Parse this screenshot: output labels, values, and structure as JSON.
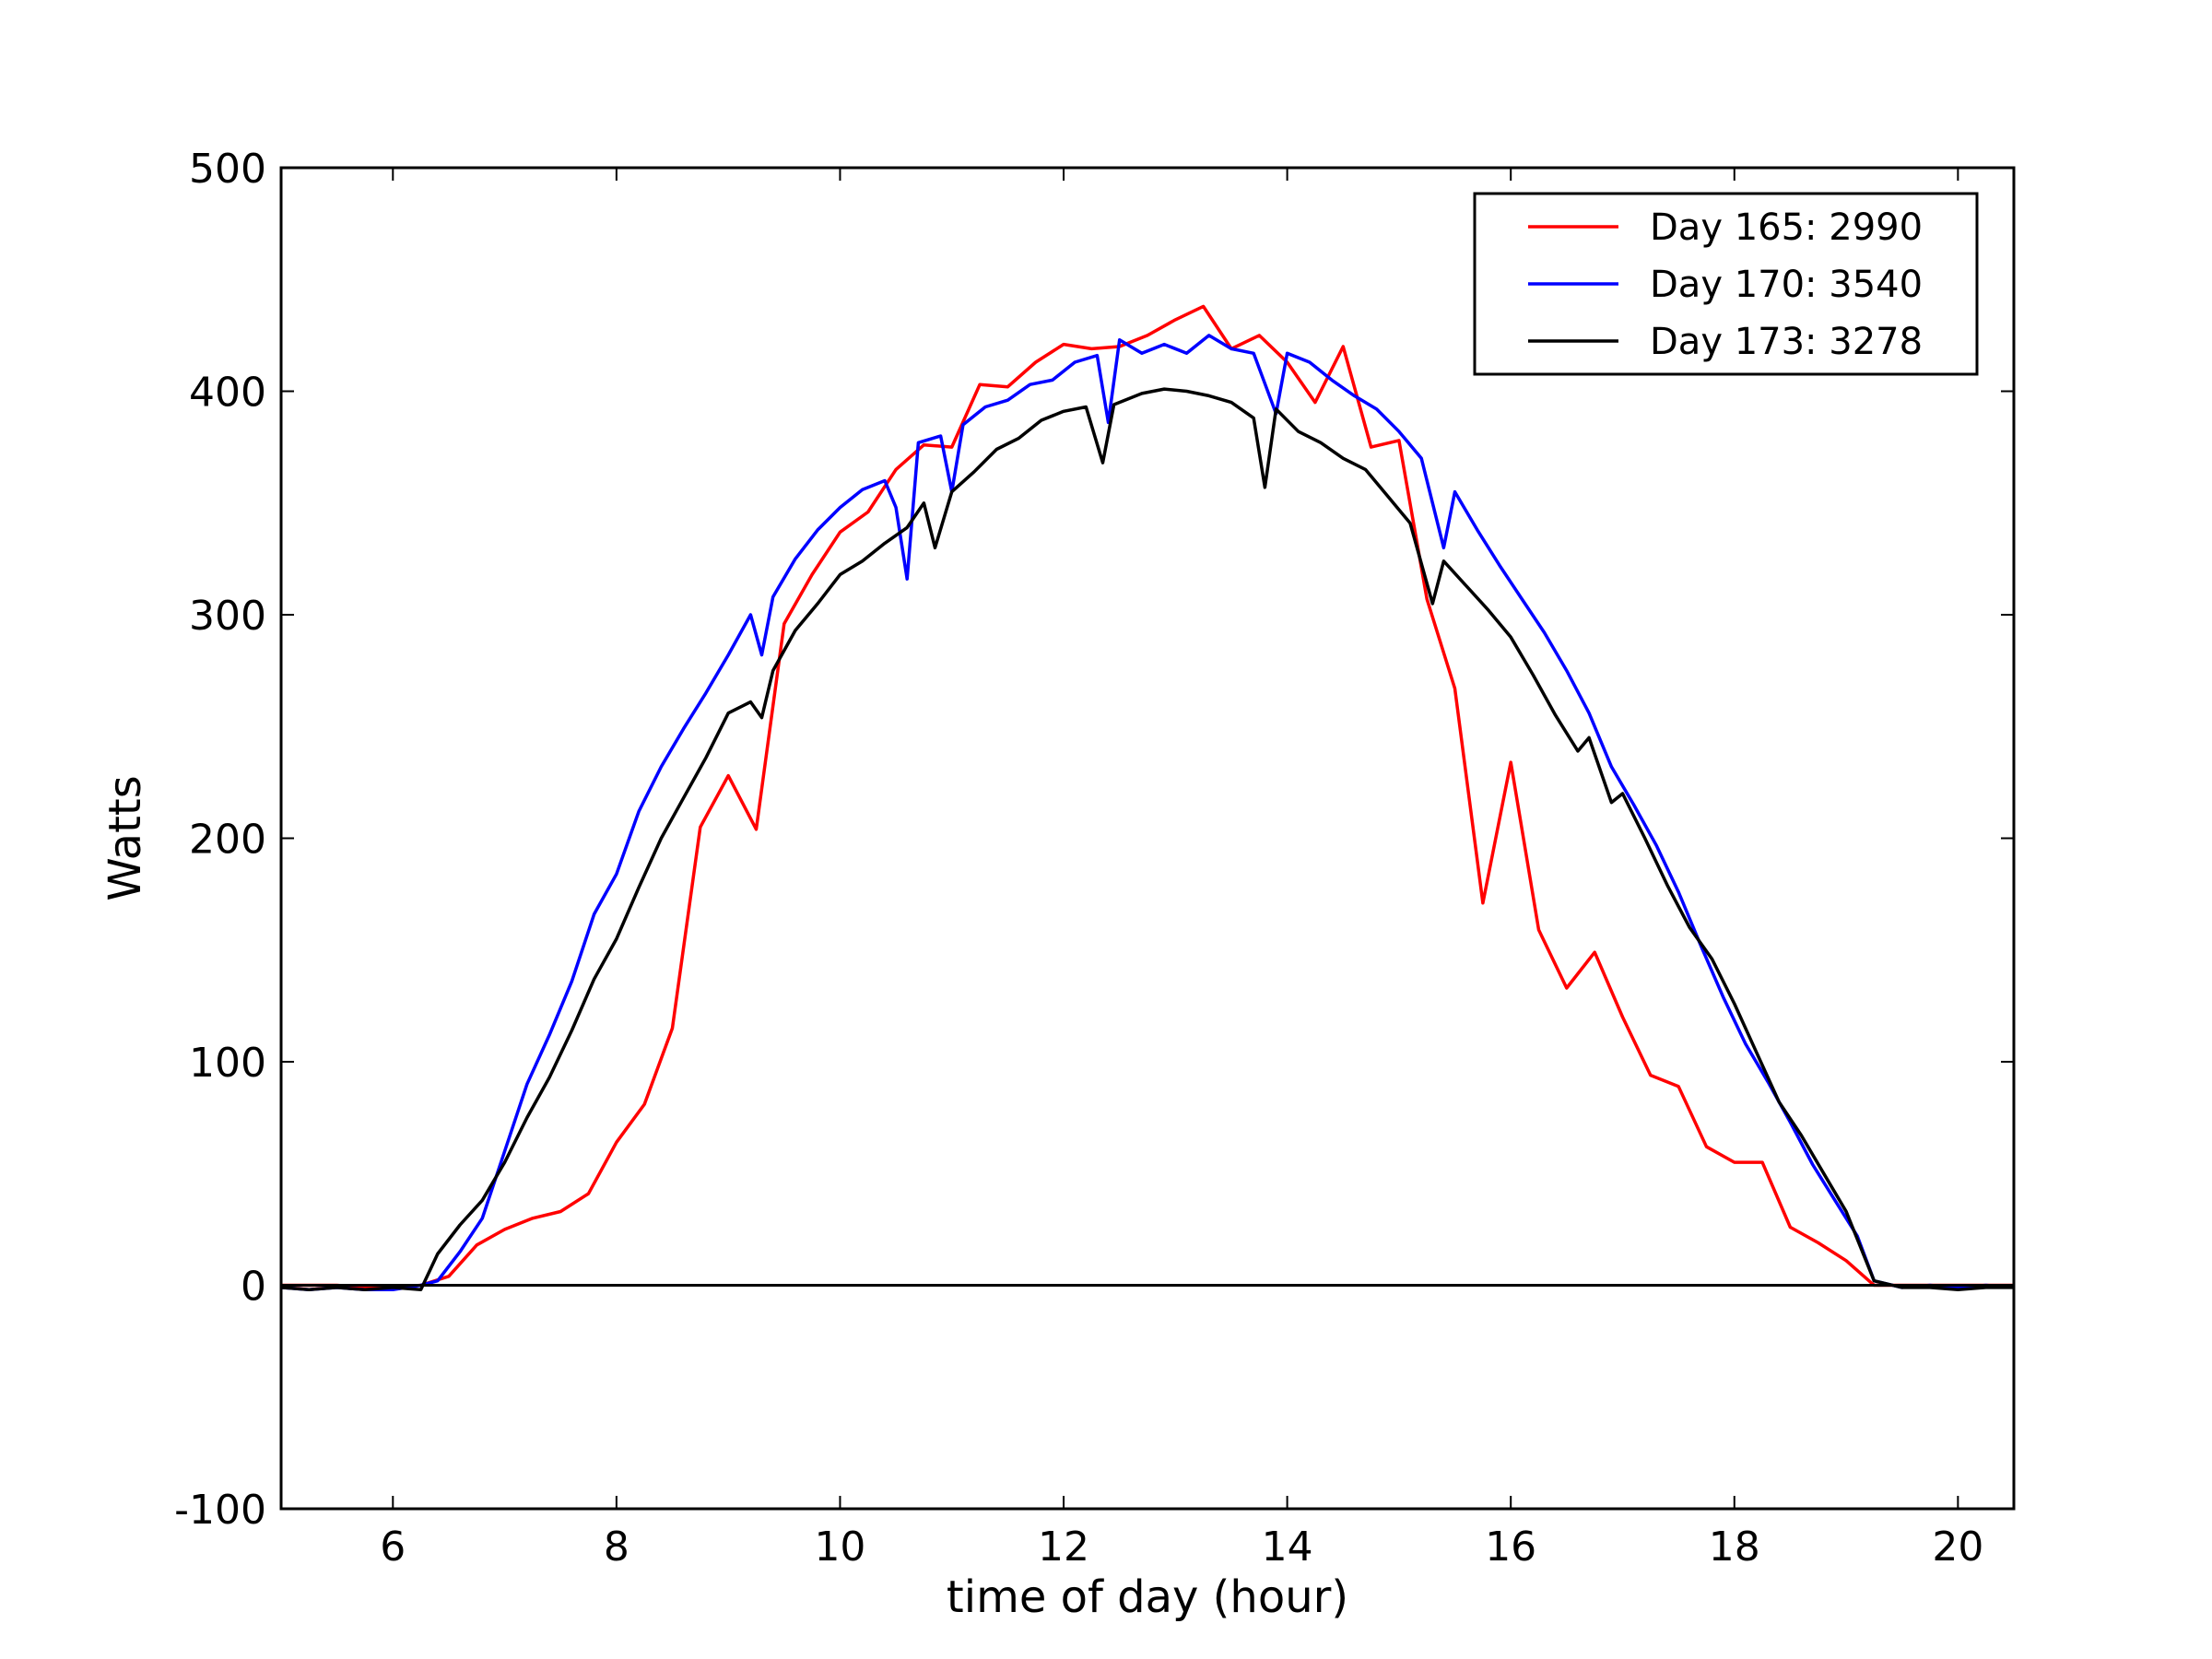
{
  "chart_data": {
    "type": "line",
    "xlabel": "time of day (hour)",
    "ylabel": "Watts",
    "xlim": [
      5,
      20.5
    ],
    "ylim": [
      -100,
      500
    ],
    "x_ticks": [
      6,
      8,
      10,
      12,
      14,
      16,
      18,
      20
    ],
    "y_ticks": [
      -100,
      0,
      100,
      200,
      300,
      400,
      500
    ],
    "x_tick_labels": [
      "6",
      "8",
      "10",
      "12",
      "14",
      "16",
      "18",
      "20"
    ],
    "y_tick_labels": [
      "-100",
      "0",
      "100",
      "200",
      "300",
      "400",
      "500"
    ],
    "grid": false,
    "zero_line": true,
    "legend_position": "top-right",
    "series": [
      {
        "name": "Day 165: 2990",
        "color": "#ff0000",
        "points": [
          [
            5.0,
            0
          ],
          [
            5.25,
            0
          ],
          [
            5.5,
            0
          ],
          [
            5.75,
            -1
          ],
          [
            6.0,
            -1
          ],
          [
            6.25,
            0
          ],
          [
            6.5,
            4
          ],
          [
            6.75,
            18
          ],
          [
            7.0,
            25
          ],
          [
            7.25,
            30
          ],
          [
            7.5,
            33
          ],
          [
            7.75,
            41
          ],
          [
            8.0,
            64
          ],
          [
            8.25,
            81
          ],
          [
            8.5,
            115
          ],
          [
            8.75,
            205
          ],
          [
            9.0,
            228
          ],
          [
            9.25,
            204
          ],
          [
            9.5,
            296
          ],
          [
            9.75,
            318
          ],
          [
            10.0,
            337
          ],
          [
            10.25,
            346
          ],
          [
            10.5,
            365
          ],
          [
            10.75,
            376
          ],
          [
            11.0,
            375
          ],
          [
            11.25,
            403
          ],
          [
            11.5,
            402
          ],
          [
            11.75,
            413
          ],
          [
            12.0,
            421
          ],
          [
            12.25,
            419
          ],
          [
            12.5,
            420
          ],
          [
            12.75,
            425
          ],
          [
            13.0,
            432
          ],
          [
            13.25,
            438
          ],
          [
            13.5,
            419
          ],
          [
            13.75,
            425
          ],
          [
            14.0,
            413
          ],
          [
            14.25,
            395
          ],
          [
            14.5,
            420
          ],
          [
            14.75,
            375
          ],
          [
            15.0,
            378
          ],
          [
            15.25,
            307
          ],
          [
            15.5,
            267
          ],
          [
            15.75,
            171
          ],
          [
            16.0,
            234
          ],
          [
            16.25,
            159
          ],
          [
            16.5,
            133
          ],
          [
            16.75,
            149
          ],
          [
            17.0,
            120
          ],
          [
            17.25,
            94
          ],
          [
            17.5,
            89
          ],
          [
            17.75,
            62
          ],
          [
            18.0,
            55
          ],
          [
            18.25,
            55
          ],
          [
            18.5,
            26
          ],
          [
            18.75,
            19
          ],
          [
            19.0,
            11
          ],
          [
            19.25,
            0
          ],
          [
            19.5,
            0
          ],
          [
            19.75,
            0
          ],
          [
            20.0,
            0
          ],
          [
            20.25,
            0
          ],
          [
            20.5,
            0
          ]
        ]
      },
      {
        "name": "Day 170: 3540",
        "color": "#0000ff",
        "points": [
          [
            5.0,
            -1
          ],
          [
            5.25,
            -2
          ],
          [
            5.5,
            -1
          ],
          [
            5.75,
            -2
          ],
          [
            6.0,
            -2
          ],
          [
            6.25,
            0
          ],
          [
            6.4,
            2
          ],
          [
            6.6,
            15
          ],
          [
            6.8,
            30
          ],
          [
            7.0,
            60
          ],
          [
            7.2,
            90
          ],
          [
            7.4,
            112
          ],
          [
            7.6,
            136
          ],
          [
            7.8,
            166
          ],
          [
            8.0,
            184
          ],
          [
            8.2,
            212
          ],
          [
            8.4,
            232
          ],
          [
            8.6,
            249
          ],
          [
            8.8,
            265
          ],
          [
            9.0,
            282
          ],
          [
            9.2,
            300
          ],
          [
            9.3,
            282
          ],
          [
            9.4,
            308
          ],
          [
            9.6,
            325
          ],
          [
            9.8,
            338
          ],
          [
            10.0,
            348
          ],
          [
            10.2,
            356
          ],
          [
            10.4,
            360
          ],
          [
            10.5,
            348
          ],
          [
            10.6,
            316
          ],
          [
            10.7,
            377
          ],
          [
            10.9,
            380
          ],
          [
            11.0,
            355
          ],
          [
            11.1,
            385
          ],
          [
            11.3,
            393
          ],
          [
            11.5,
            396
          ],
          [
            11.7,
            403
          ],
          [
            11.9,
            405
          ],
          [
            12.1,
            413
          ],
          [
            12.3,
            416
          ],
          [
            12.4,
            386
          ],
          [
            12.5,
            423
          ],
          [
            12.7,
            417
          ],
          [
            12.9,
            421
          ],
          [
            13.1,
            417
          ],
          [
            13.3,
            425
          ],
          [
            13.5,
            419
          ],
          [
            13.7,
            417
          ],
          [
            13.9,
            390
          ],
          [
            14.0,
            417
          ],
          [
            14.2,
            413
          ],
          [
            14.4,
            405
          ],
          [
            14.6,
            398
          ],
          [
            14.8,
            392
          ],
          [
            15.0,
            382
          ],
          [
            15.2,
            370
          ],
          [
            15.4,
            330
          ],
          [
            15.5,
            355
          ],
          [
            15.7,
            338
          ],
          [
            15.9,
            322
          ],
          [
            16.1,
            307
          ],
          [
            16.3,
            292
          ],
          [
            16.5,
            275
          ],
          [
            16.7,
            256
          ],
          [
            16.9,
            232
          ],
          [
            17.1,
            215
          ],
          [
            17.3,
            197
          ],
          [
            17.5,
            176
          ],
          [
            17.7,
            152
          ],
          [
            17.9,
            129
          ],
          [
            18.1,
            108
          ],
          [
            18.3,
            91
          ],
          [
            18.5,
            73
          ],
          [
            18.7,
            54
          ],
          [
            18.9,
            38
          ],
          [
            19.1,
            22
          ],
          [
            19.25,
            2
          ],
          [
            19.5,
            -1
          ],
          [
            19.75,
            0
          ],
          [
            20.0,
            -1
          ],
          [
            20.25,
            0
          ],
          [
            20.5,
            -1
          ]
        ]
      },
      {
        "name": "Day 173: 3278",
        "color": "#000000",
        "points": [
          [
            5.0,
            -1
          ],
          [
            5.25,
            -2
          ],
          [
            5.5,
            -1
          ],
          [
            5.75,
            -2
          ],
          [
            6.0,
            -1
          ],
          [
            6.25,
            -2
          ],
          [
            6.4,
            14
          ],
          [
            6.6,
            27
          ],
          [
            6.8,
            38
          ],
          [
            7.0,
            55
          ],
          [
            7.2,
            75
          ],
          [
            7.4,
            93
          ],
          [
            7.6,
            114
          ],
          [
            7.8,
            137
          ],
          [
            8.0,
            155
          ],
          [
            8.2,
            178
          ],
          [
            8.4,
            200
          ],
          [
            8.6,
            218
          ],
          [
            8.8,
            236
          ],
          [
            9.0,
            256
          ],
          [
            9.2,
            261
          ],
          [
            9.3,
            254
          ],
          [
            9.4,
            275
          ],
          [
            9.6,
            293
          ],
          [
            9.8,
            305
          ],
          [
            10.0,
            318
          ],
          [
            10.2,
            324
          ],
          [
            10.4,
            332
          ],
          [
            10.6,
            339
          ],
          [
            10.75,
            350
          ],
          [
            10.85,
            330
          ],
          [
            11.0,
            355
          ],
          [
            11.2,
            364
          ],
          [
            11.4,
            374
          ],
          [
            11.6,
            379
          ],
          [
            11.8,
            387
          ],
          [
            12.0,
            391
          ],
          [
            12.2,
            393
          ],
          [
            12.35,
            368
          ],
          [
            12.45,
            394
          ],
          [
            12.7,
            399
          ],
          [
            12.9,
            401
          ],
          [
            13.1,
            400
          ],
          [
            13.3,
            398
          ],
          [
            13.5,
            395
          ],
          [
            13.7,
            388
          ],
          [
            13.8,
            357
          ],
          [
            13.9,
            392
          ],
          [
            14.1,
            382
          ],
          [
            14.3,
            377
          ],
          [
            14.5,
            370
          ],
          [
            14.7,
            365
          ],
          [
            14.9,
            353
          ],
          [
            15.1,
            341
          ],
          [
            15.3,
            305
          ],
          [
            15.4,
            324
          ],
          [
            15.6,
            313
          ],
          [
            15.8,
            302
          ],
          [
            16.0,
            290
          ],
          [
            16.2,
            273
          ],
          [
            16.4,
            255
          ],
          [
            16.6,
            239
          ],
          [
            16.7,
            245
          ],
          [
            16.9,
            216
          ],
          [
            17.0,
            220
          ],
          [
            17.2,
            200
          ],
          [
            17.4,
            179
          ],
          [
            17.6,
            160
          ],
          [
            17.8,
            146
          ],
          [
            18.0,
            126
          ],
          [
            18.2,
            104
          ],
          [
            18.4,
            82
          ],
          [
            18.6,
            67
          ],
          [
            18.8,
            50
          ],
          [
            19.0,
            33
          ],
          [
            19.25,
            2
          ],
          [
            19.5,
            -1
          ],
          [
            19.75,
            -1
          ],
          [
            20.0,
            -2
          ],
          [
            20.25,
            -1
          ],
          [
            20.5,
            -1
          ]
        ]
      }
    ]
  }
}
